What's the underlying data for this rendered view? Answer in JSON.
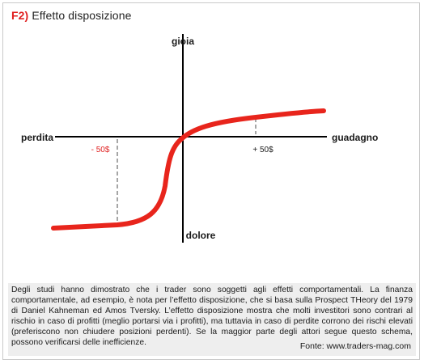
{
  "figure": {
    "code": "F2)",
    "title": "Effetto disposizione"
  },
  "diagram": {
    "axis_top": "gioia",
    "axis_bottom": "dolore",
    "axis_left": "perdita",
    "axis_right": "guadagno",
    "marker_negative": "- 50$",
    "marker_positive": "+ 50$",
    "curve_color": "#e8251c",
    "negative_color": "#e02020"
  },
  "caption": {
    "text": "Degli studi hanno dimostrato che i trader sono soggetti agli effetti comportamentali. La finanza comportamentale, ad esempio, è nota per l’effetto disposizione, che si basa sulla Prospect THeory del 1979 di Daniel Kahneman ed Amos Tversky. L’effetto disposizione mostra che molti investitori sono contrari al rischio in caso di profitti (meglio portarsi via i profitti), ma tuttavia in caso di perdite corrono dei rischi elevati (preferiscono non chiudere posizioni perdenti). Se la maggior parte degli attori segue questo schema, possono verificarsi delle inefficienze.",
    "source": "Fonte: www.traders-mag.com"
  }
}
